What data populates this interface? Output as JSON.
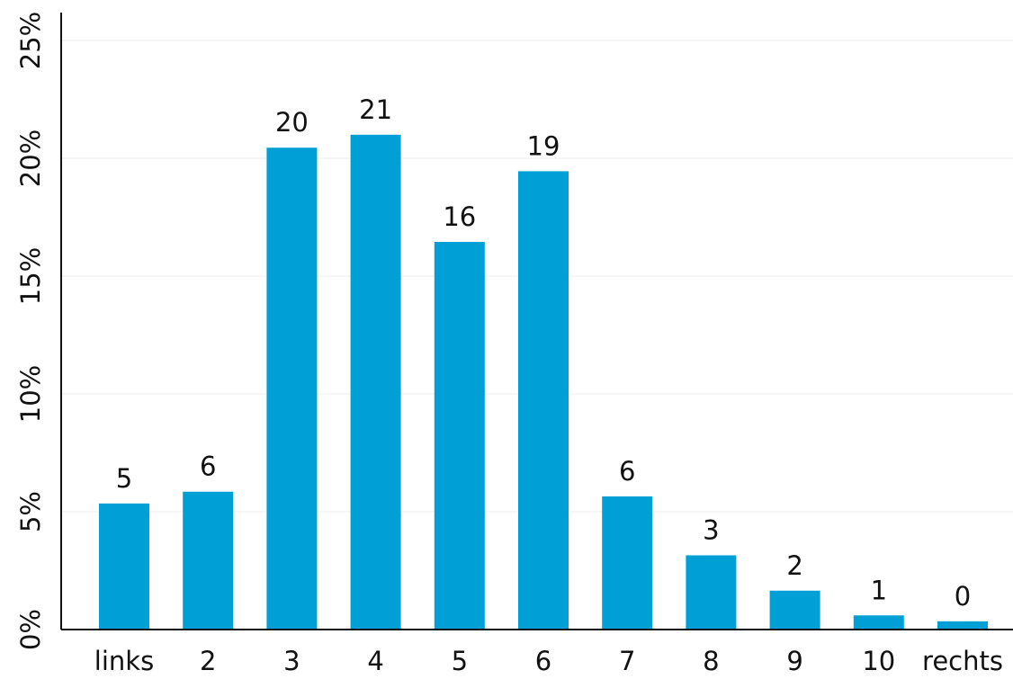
{
  "chart_data": {
    "type": "bar",
    "categories": [
      "links",
      "2",
      "3",
      "4",
      "5",
      "6",
      "7",
      "8",
      "9",
      "10",
      "rechts"
    ],
    "values": [
      5.35,
      5.85,
      20.45,
      21.0,
      16.45,
      19.45,
      5.65,
      3.15,
      1.65,
      0.6,
      0.35
    ],
    "data_labels": [
      "5",
      "6",
      "20",
      "21",
      "16",
      "19",
      "6",
      "3",
      "2",
      "1",
      "0"
    ],
    "y_ticks": [
      0,
      5,
      10,
      15,
      20,
      25
    ],
    "y_tick_labels": [
      "0%",
      "5%",
      "10%",
      "15%",
      "20%",
      "25%"
    ],
    "ylim": [
      0,
      25
    ],
    "title": "",
    "xlabel": "",
    "ylabel": "",
    "grid": true,
    "legend": "none",
    "colors": {
      "bar": "#00a0d6",
      "grid": "#eeeeee",
      "axis": "#111111",
      "text": "#111111"
    }
  }
}
